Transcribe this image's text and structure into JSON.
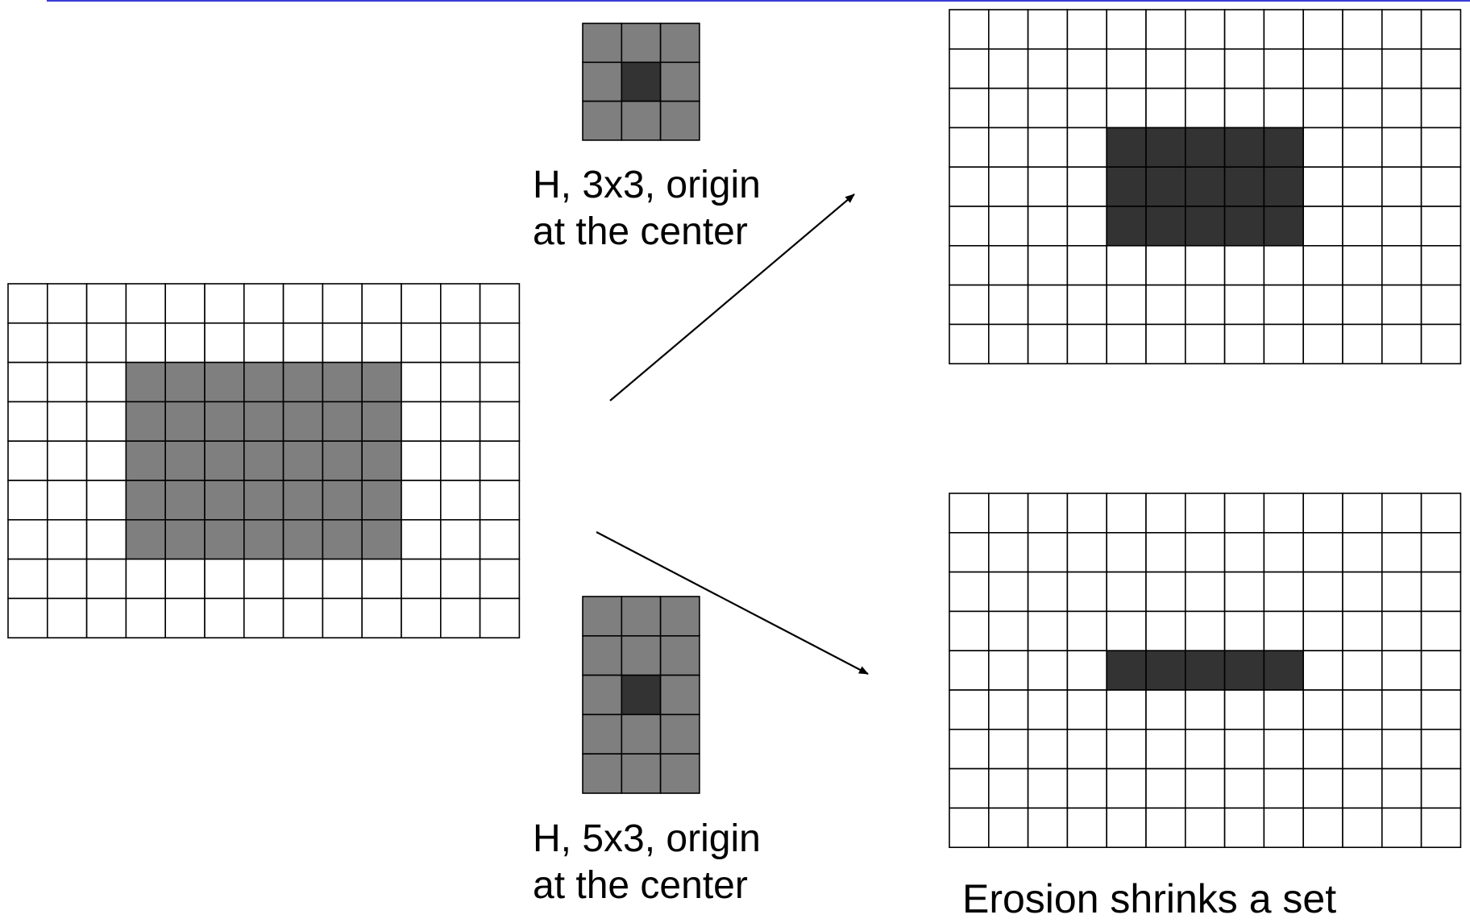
{
  "colors": {
    "background": "#ffffff",
    "cell_empty": "#ffffff",
    "cell_set": "#7f7f7f",
    "cell_origin": "#333333",
    "cell_result": "#333333",
    "grid_line": "#000000",
    "top_rule": "#3b3bd6"
  },
  "grids": {
    "input": {
      "rows": 9,
      "cols": 13,
      "cells": [
        "0000000000000",
        "0000000000000",
        "0001111111000",
        "0001111111000",
        "0001111111000",
        "0001111111000",
        "0001111111000",
        "0000000000000",
        "0000000000000"
      ]
    },
    "se_3x3": {
      "rows": 3,
      "cols": 3,
      "cells": [
        "111",
        "121",
        "111"
      ]
    },
    "se_5x3": {
      "rows": 5,
      "cols": 3,
      "cells": [
        "111",
        "111",
        "121",
        "111",
        "111"
      ]
    },
    "result_3x3": {
      "rows": 9,
      "cols": 13,
      "cells": [
        "0000000000000",
        "0000000000000",
        "0000000000000",
        "0000333330000",
        "0000333330000",
        "0000333330000",
        "0000000000000",
        "0000000000000",
        "0000000000000"
      ]
    },
    "result_5x3": {
      "rows": 9,
      "cols": 13,
      "cells": [
        "0000000000000",
        "0000000000000",
        "0000000000000",
        "0000000000000",
        "0000333330000",
        "0000000000000",
        "0000000000000",
        "0000000000000",
        "0000000000000"
      ]
    }
  },
  "labels": {
    "se_3x3": [
      "H, 3x3, origin",
      "at the center"
    ],
    "se_5x3": [
      "H, 5x3, origin",
      "at the center"
    ],
    "summary": "Erosion shrinks a set"
  }
}
